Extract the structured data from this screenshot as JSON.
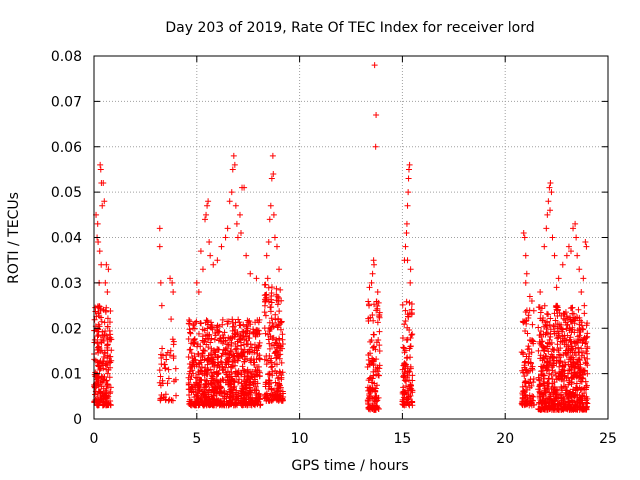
{
  "chart_data": {
    "type": "scatter",
    "title": "Day 203 of 2019, Rate Of TEC Index for receiver lord",
    "xlabel": "GPS time / hours",
    "ylabel": "ROTI / TECUs",
    "xlim": [
      0,
      25
    ],
    "ylim": [
      0,
      0.08
    ],
    "x_ticks": [
      "0",
      "5",
      "10",
      "15",
      "20",
      "25"
    ],
    "y_ticks": [
      "0",
      "0.01",
      "0.02",
      "0.03",
      "0.04",
      "0.05",
      "0.06",
      "0.07",
      "0.08"
    ],
    "x_tick_values": [
      0,
      5,
      10,
      15,
      20,
      25
    ],
    "y_tick_values": [
      0,
      0.01,
      0.02,
      0.03,
      0.04,
      0.05,
      0.06,
      0.07,
      0.08
    ],
    "grid": true,
    "marker": "+",
    "marker_color": "#ff0000",
    "grid_color": "#a0a0a0",
    "clusters": [
      {
        "x": [
          0.0,
          0.85
        ],
        "y": [
          0.003,
          0.025
        ],
        "n": 220
      },
      {
        "x": [
          3.2,
          4.0
        ],
        "y": [
          0.004,
          0.018
        ],
        "n": 45
      },
      {
        "x": [
          4.6,
          8.1
        ],
        "y": [
          0.003,
          0.022
        ],
        "n": 850
      },
      {
        "x": [
          8.3,
          9.2
        ],
        "y": [
          0.004,
          0.03
        ],
        "n": 200
      },
      {
        "x": [
          13.3,
          13.9
        ],
        "y": [
          0.002,
          0.026
        ],
        "n": 130
      },
      {
        "x": [
          15.0,
          15.5
        ],
        "y": [
          0.003,
          0.026
        ],
        "n": 110
      },
      {
        "x": [
          20.8,
          21.4
        ],
        "y": [
          0.003,
          0.024
        ],
        "n": 110
      },
      {
        "x": [
          21.6,
          24.0
        ],
        "y": [
          0.002,
          0.025
        ],
        "n": 700
      }
    ],
    "points": [
      [
        0.1,
        0.045
      ],
      [
        0.15,
        0.04
      ],
      [
        0.2,
        0.039
      ],
      [
        0.18,
        0.043
      ],
      [
        0.3,
        0.056
      ],
      [
        0.33,
        0.055
      ],
      [
        0.36,
        0.052
      ],
      [
        0.4,
        0.047
      ],
      [
        0.45,
        0.052
      ],
      [
        0.5,
        0.048
      ],
      [
        0.28,
        0.037
      ],
      [
        0.35,
        0.034
      ],
      [
        0.6,
        0.034
      ],
      [
        0.7,
        0.033
      ],
      [
        0.55,
        0.03
      ],
      [
        0.25,
        0.03
      ],
      [
        0.65,
        0.028
      ],
      [
        3.2,
        0.042
      ],
      [
        3.2,
        0.038
      ],
      [
        3.25,
        0.03
      ],
      [
        3.7,
        0.031
      ],
      [
        3.8,
        0.03
      ],
      [
        3.85,
        0.028
      ],
      [
        3.3,
        0.025
      ],
      [
        3.75,
        0.022
      ],
      [
        5.0,
        0.03
      ],
      [
        5.2,
        0.037
      ],
      [
        5.4,
        0.044
      ],
      [
        5.5,
        0.047
      ],
      [
        5.55,
        0.048
      ],
      [
        5.45,
        0.045
      ],
      [
        5.6,
        0.039
      ],
      [
        5.65,
        0.036
      ],
      [
        5.3,
        0.033
      ],
      [
        5.1,
        0.028
      ],
      [
        5.8,
        0.034
      ],
      [
        6.0,
        0.035
      ],
      [
        6.2,
        0.038
      ],
      [
        6.4,
        0.04
      ],
      [
        6.6,
        0.048
      ],
      [
        6.7,
        0.05
      ],
      [
        6.75,
        0.055
      ],
      [
        6.8,
        0.058
      ],
      [
        6.85,
        0.056
      ],
      [
        6.9,
        0.047
      ],
      [
        6.95,
        0.043
      ],
      [
        7.0,
        0.04
      ],
      [
        7.2,
        0.051
      ],
      [
        7.3,
        0.051
      ],
      [
        7.15,
        0.041
      ],
      [
        7.4,
        0.036
      ],
      [
        7.6,
        0.032
      ],
      [
        7.9,
        0.031
      ],
      [
        7.1,
        0.045
      ],
      [
        6.5,
        0.042
      ],
      [
        8.4,
        0.036
      ],
      [
        8.5,
        0.039
      ],
      [
        8.55,
        0.044
      ],
      [
        8.6,
        0.047
      ],
      [
        8.65,
        0.053
      ],
      [
        8.7,
        0.058
      ],
      [
        8.72,
        0.054
      ],
      [
        8.75,
        0.045
      ],
      [
        8.8,
        0.04
      ],
      [
        8.9,
        0.038
      ],
      [
        9.0,
        0.033
      ],
      [
        8.45,
        0.031
      ],
      [
        13.5,
        0.03
      ],
      [
        13.55,
        0.032
      ],
      [
        13.6,
        0.035
      ],
      [
        13.62,
        0.034
      ],
      [
        13.7,
        0.06
      ],
      [
        13.72,
        0.067
      ],
      [
        13.65,
        0.078
      ],
      [
        13.4,
        0.029
      ],
      [
        13.8,
        0.028
      ],
      [
        15.1,
        0.035
      ],
      [
        15.15,
        0.038
      ],
      [
        15.2,
        0.041
      ],
      [
        15.22,
        0.043
      ],
      [
        15.25,
        0.047
      ],
      [
        15.28,
        0.05
      ],
      [
        15.3,
        0.053
      ],
      [
        15.32,
        0.055
      ],
      [
        15.35,
        0.056
      ],
      [
        15.25,
        0.035
      ],
      [
        15.4,
        0.033
      ],
      [
        15.38,
        0.03
      ],
      [
        20.9,
        0.041
      ],
      [
        20.95,
        0.04
      ],
      [
        21.0,
        0.036
      ],
      [
        21.05,
        0.032
      ],
      [
        21.0,
        0.03
      ],
      [
        21.2,
        0.027
      ],
      [
        21.3,
        0.026
      ],
      [
        21.9,
        0.038
      ],
      [
        22.0,
        0.042
      ],
      [
        22.05,
        0.045
      ],
      [
        22.1,
        0.048
      ],
      [
        22.15,
        0.051
      ],
      [
        22.2,
        0.052
      ],
      [
        22.25,
        0.05
      ],
      [
        22.18,
        0.046
      ],
      [
        22.3,
        0.04
      ],
      [
        22.4,
        0.036
      ],
      [
        22.6,
        0.031
      ],
      [
        22.8,
        0.034
      ],
      [
        23.0,
        0.036
      ],
      [
        23.1,
        0.038
      ],
      [
        23.2,
        0.037
      ],
      [
        23.3,
        0.042
      ],
      [
        23.4,
        0.043
      ],
      [
        23.45,
        0.04
      ],
      [
        23.5,
        0.036
      ],
      [
        23.6,
        0.033
      ],
      [
        23.8,
        0.031
      ],
      [
        23.9,
        0.039
      ],
      [
        23.95,
        0.038
      ],
      [
        22.5,
        0.029
      ],
      [
        23.7,
        0.028
      ],
      [
        21.7,
        0.028
      ]
    ]
  }
}
